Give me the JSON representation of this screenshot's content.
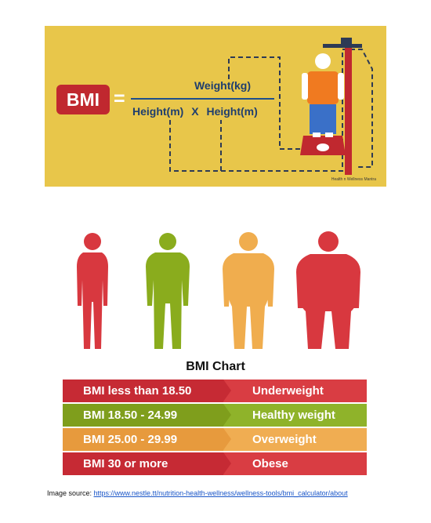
{
  "formula": {
    "badge": "BMI",
    "equals": "=",
    "numerator": "Weight(kg)",
    "denominator_left": "Height(m)",
    "multiply": "X",
    "denominator_right": "Height(m)",
    "credit": "Health n Wellness Mantra"
  },
  "chart": {
    "title": "BMI Chart",
    "rows": [
      {
        "range": "BMI less than 18.50",
        "category": "Underweight",
        "left_color": "#c62a34",
        "right_color": "#d93d43"
      },
      {
        "range": "BMI 18.50 - 24.99",
        "category": "Healthy weight",
        "left_color": "#7f9e1c",
        "right_color": "#8fb32a"
      },
      {
        "range": "BMI 25.00 - 29.99",
        "category": "Overweight",
        "left_color": "#e79a3d",
        "right_color": "#f0ad52"
      },
      {
        "range": "BMI 30 or more",
        "category": "Obese",
        "left_color": "#c62a34",
        "right_color": "#d93d43"
      }
    ]
  },
  "figures": {
    "colors": [
      "#d8383f",
      "#8aac1d",
      "#f0ad4e",
      "#d8383f"
    ]
  },
  "source": {
    "prefix": "Image source: ",
    "url": "https://www.nestle.tt/nutrition-health-wellness/wellness-tools/bmi_calculator/about"
  }
}
